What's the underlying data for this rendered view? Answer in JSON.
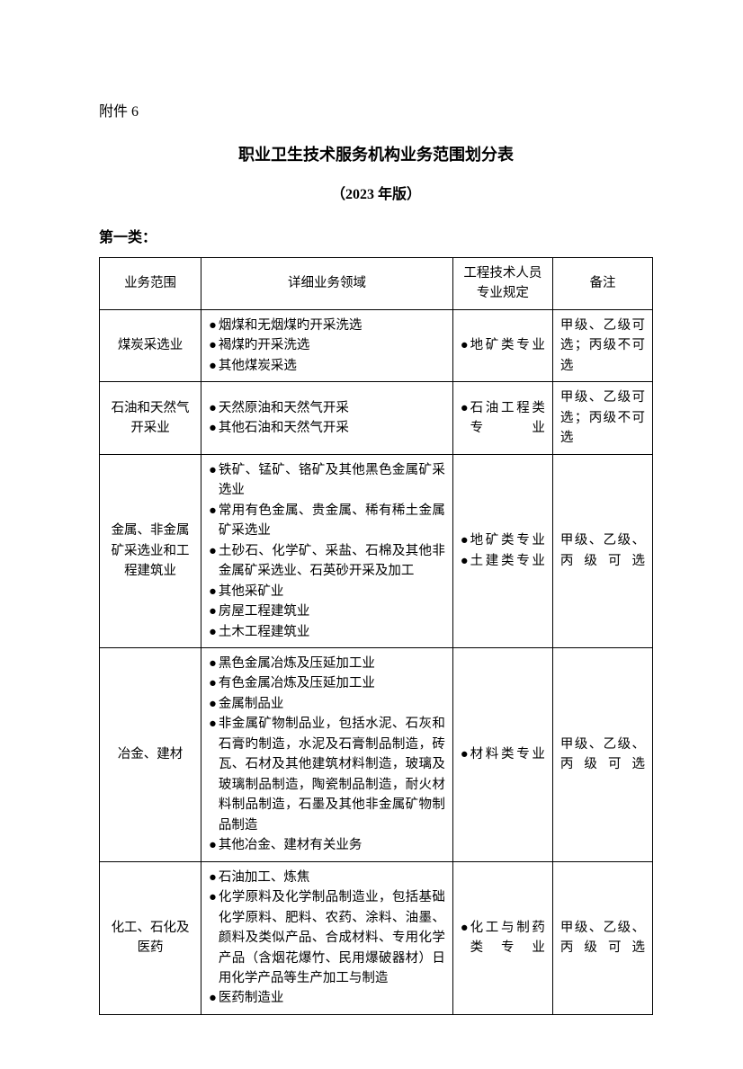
{
  "attachment_label": "附件 6",
  "title": "职业卫生技术服务机构业务范围划分表",
  "subtitle": "（2023 年版）",
  "category_label": "第一类：",
  "columns": [
    "业务范围",
    "详细业务领域",
    "工程技术人员专业规定",
    "备注"
  ],
  "rows": [
    {
      "scope": "煤炭采选业",
      "details": [
        "烟煤和无烟煤旳开采洗选",
        "褐煤旳开采洗选",
        "其他煤炭采选"
      ],
      "spec": [
        "地矿类专业"
      ],
      "note": "甲级、乙级可选；丙级不可选"
    },
    {
      "scope": "石油和天然气开采业",
      "details": [
        "天然原油和天然气开采",
        "其他石油和天然气开采"
      ],
      "spec": [
        "石油工程类专业"
      ],
      "note": "甲级、乙级可选；丙级不可选"
    },
    {
      "scope": "金属、非金属矿采选业和工程建筑业",
      "details": [
        "铁矿、锰矿、铬矿及其他黑色金属矿采选业",
        "常用有色金属、贵金属、稀有稀土金属矿采选业",
        "土砂石、化学矿、采盐、石棉及其他非金属矿采选业、石英砂开采及加工",
        "其他采矿业",
        "房屋工程建筑业",
        "土木工程建筑业"
      ],
      "spec": [
        "地矿类专业",
        "土建类专业"
      ],
      "note": "甲级、乙级、丙级可选"
    },
    {
      "scope": "冶金、建材",
      "details": [
        "黑色金属冶炼及压延加工业",
        "有色金属冶炼及压延加工业",
        "金属制品业",
        "非金属矿物制品业，包括水泥、石灰和石膏旳制造，水泥及石膏制品制造，砖瓦、石材及其他建筑材料制造，玻璃及玻璃制品制造，陶瓷制品制造，耐火材料制品制造，石墨及其他非金属矿物制品制造",
        "其他冶金、建材有关业务"
      ],
      "spec": [
        "材料类专业"
      ],
      "note": "甲级、乙级、丙级可选"
    },
    {
      "scope": "化工、石化及医药",
      "details": [
        "石油加工、炼焦",
        "化学原料及化学制品制造业，包括基础化学原料、肥料、农药、涂料、油墨、颜料及类似产品、合成材料、专用化学产品（含烟花爆竹、民用爆破器材）日用化学产品等生产加工与制造",
        "医药制造业"
      ],
      "spec": [
        "化工与制药类专业"
      ],
      "note": "甲级、乙级、丙级可选"
    }
  ]
}
